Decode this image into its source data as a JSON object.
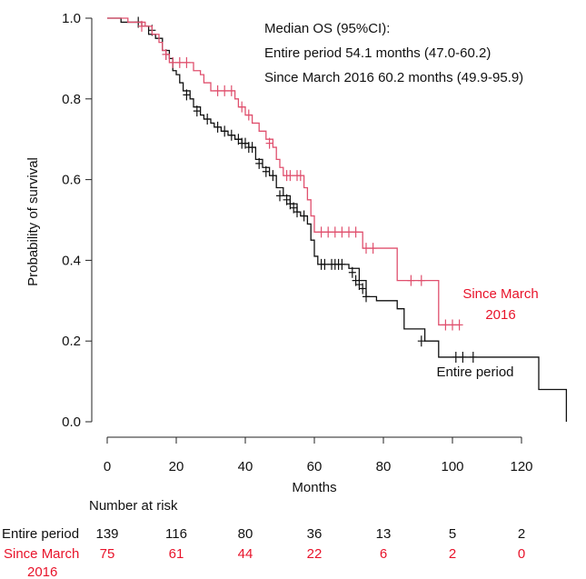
{
  "chart_data": {
    "type": "line",
    "subtype": "kaplan-meier",
    "xlabel": "Months",
    "ylabel": "Probability of survival",
    "xlim": [
      0,
      135
    ],
    "ylim": [
      0,
      1
    ],
    "xticks": [
      "0",
      "20",
      "40",
      "60",
      "80",
      "100",
      "120"
    ],
    "yticks": [
      "0.0",
      "0.2",
      "0.4",
      "0.6",
      "0.8",
      "1.0"
    ],
    "annotation": {
      "title": "Median OS (95%CI):",
      "line1": "Entire period 54.1 months (47.0-60.2)",
      "line2": "Since March 2016 60.2 months (49.9-95.9)"
    },
    "series": [
      {
        "name": "Entire period",
        "label": "Entire period",
        "color": "#111111",
        "steps": [
          [
            0,
            1.0
          ],
          [
            4,
            0.99
          ],
          [
            10,
            0.98
          ],
          [
            12,
            0.96
          ],
          [
            14,
            0.95
          ],
          [
            16,
            0.92
          ],
          [
            18,
            0.9
          ],
          [
            19,
            0.87
          ],
          [
            20,
            0.86
          ],
          [
            21,
            0.84
          ],
          [
            22,
            0.82
          ],
          [
            24,
            0.8
          ],
          [
            25,
            0.78
          ],
          [
            27,
            0.76
          ],
          [
            28,
            0.75
          ],
          [
            30,
            0.74
          ],
          [
            31,
            0.73
          ],
          [
            33,
            0.72
          ],
          [
            35,
            0.71
          ],
          [
            37,
            0.7
          ],
          [
            39,
            0.69
          ],
          [
            41,
            0.68
          ],
          [
            43,
            0.65
          ],
          [
            45,
            0.63
          ],
          [
            47,
            0.61
          ],
          [
            49,
            0.58
          ],
          [
            51,
            0.56
          ],
          [
            53,
            0.54
          ],
          [
            55,
            0.52
          ],
          [
            56,
            0.51
          ],
          [
            58,
            0.49
          ],
          [
            59,
            0.45
          ],
          [
            60,
            0.41
          ],
          [
            61,
            0.39
          ],
          [
            64,
            0.39
          ],
          [
            70,
            0.38
          ],
          [
            73,
            0.35
          ],
          [
            75,
            0.31
          ],
          [
            78,
            0.3
          ],
          [
            84,
            0.28
          ],
          [
            86,
            0.23
          ],
          [
            92,
            0.2
          ],
          [
            96,
            0.16
          ],
          [
            108,
            0.16
          ],
          [
            125,
            0.08
          ],
          [
            133,
            0.08
          ],
          [
            133,
            0.0
          ]
        ],
        "censored": [
          [
            9,
            0.99
          ],
          [
            13,
            0.97
          ],
          [
            17,
            0.91
          ],
          [
            23,
            0.81
          ],
          [
            26,
            0.77
          ],
          [
            29,
            0.75
          ],
          [
            32,
            0.73
          ],
          [
            34,
            0.72
          ],
          [
            36,
            0.71
          ],
          [
            38,
            0.7
          ],
          [
            39,
            0.69
          ],
          [
            40,
            0.69
          ],
          [
            41,
            0.68
          ],
          [
            42,
            0.68
          ],
          [
            44,
            0.64
          ],
          [
            46,
            0.62
          ],
          [
            48,
            0.61
          ],
          [
            50,
            0.56
          ],
          [
            52,
            0.55
          ],
          [
            53,
            0.54
          ],
          [
            54,
            0.53
          ],
          [
            55,
            0.52
          ],
          [
            57,
            0.51
          ],
          [
            62,
            0.39
          ],
          [
            63,
            0.39
          ],
          [
            65,
            0.39
          ],
          [
            66,
            0.39
          ],
          [
            67,
            0.39
          ],
          [
            68,
            0.39
          ],
          [
            71,
            0.37
          ],
          [
            72,
            0.35
          ],
          [
            73,
            0.34
          ],
          [
            74,
            0.33
          ],
          [
            75,
            0.31
          ],
          [
            91,
            0.2
          ],
          [
            101,
            0.16
          ],
          [
            103,
            0.16
          ],
          [
            106,
            0.16
          ]
        ]
      },
      {
        "name": "Since March 2016",
        "label": "Since March 2016",
        "color": "#e0506e",
        "steps": [
          [
            0,
            1.0
          ],
          [
            6,
            0.99
          ],
          [
            11,
            0.98
          ],
          [
            13,
            0.96
          ],
          [
            15,
            0.94
          ],
          [
            16,
            0.92
          ],
          [
            17,
            0.91
          ],
          [
            18,
            0.89
          ],
          [
            24,
            0.89
          ],
          [
            25,
            0.87
          ],
          [
            27,
            0.86
          ],
          [
            28,
            0.84
          ],
          [
            30,
            0.82
          ],
          [
            36,
            0.82
          ],
          [
            37,
            0.8
          ],
          [
            38,
            0.78
          ],
          [
            40,
            0.76
          ],
          [
            42,
            0.74
          ],
          [
            44,
            0.72
          ],
          [
            46,
            0.7
          ],
          [
            48,
            0.68
          ],
          [
            49,
            0.65
          ],
          [
            50,
            0.63
          ],
          [
            51,
            0.61
          ],
          [
            56,
            0.61
          ],
          [
            57,
            0.58
          ],
          [
            58,
            0.55
          ],
          [
            59,
            0.51
          ],
          [
            60,
            0.47
          ],
          [
            73,
            0.47
          ],
          [
            74,
            0.43
          ],
          [
            77,
            0.43
          ],
          [
            84,
            0.35
          ],
          [
            96,
            0.35
          ],
          [
            96,
            0.24
          ],
          [
            102,
            0.24
          ]
        ],
        "censored": [
          [
            10,
            0.98
          ],
          [
            17,
            0.91
          ],
          [
            19,
            0.89
          ],
          [
            21,
            0.89
          ],
          [
            23,
            0.89
          ],
          [
            32,
            0.82
          ],
          [
            34,
            0.82
          ],
          [
            36,
            0.82
          ],
          [
            39,
            0.78
          ],
          [
            41,
            0.76
          ],
          [
            47,
            0.69
          ],
          [
            52,
            0.61
          ],
          [
            53,
            0.61
          ],
          [
            55,
            0.61
          ],
          [
            56,
            0.61
          ],
          [
            62,
            0.47
          ],
          [
            64,
            0.47
          ],
          [
            66,
            0.47
          ],
          [
            68,
            0.47
          ],
          [
            70,
            0.47
          ],
          [
            72,
            0.47
          ],
          [
            75,
            0.43
          ],
          [
            77,
            0.43
          ],
          [
            88,
            0.35
          ],
          [
            91,
            0.35
          ],
          [
            98,
            0.24
          ],
          [
            100,
            0.24
          ],
          [
            102,
            0.24
          ]
        ]
      }
    ],
    "risk_table": {
      "title": "Number at risk",
      "times": [
        0,
        20,
        40,
        60,
        80,
        100,
        120
      ],
      "rows": [
        {
          "label": "Entire period",
          "color": "#111111",
          "values": [
            "139",
            "116",
            "80",
            "36",
            "13",
            "5",
            "2"
          ]
        },
        {
          "label_line1": "Since March",
          "label_line2": "2016",
          "color": "#e8132a",
          "values": [
            "75",
            "61",
            "44",
            "22",
            "6",
            "2",
            "0"
          ]
        }
      ]
    },
    "series_labels": {
      "since_line1": "Since March",
      "since_line2": "2016",
      "since_color": "#e8132a",
      "entire": "Entire period"
    }
  }
}
